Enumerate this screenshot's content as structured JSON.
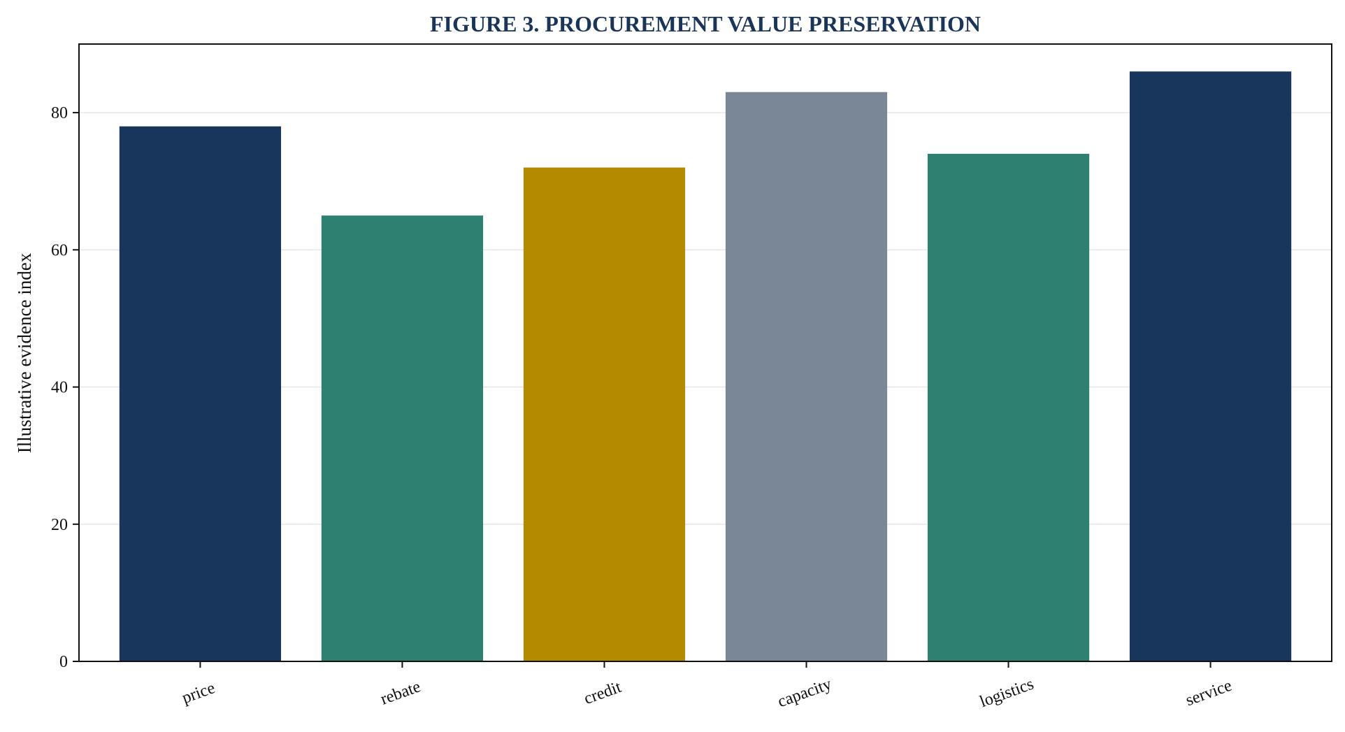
{
  "chart_data": {
    "type": "bar",
    "title": "FIGURE 3. PROCUREMENT VALUE PRESERVATION",
    "xlabel": "",
    "ylabel": "Illustrative evidence index",
    "categories": [
      "price",
      "rebate",
      "credit",
      "capacity",
      "logistics",
      "service"
    ],
    "values": [
      78,
      65,
      72,
      83,
      74,
      86
    ],
    "colors": [
      "#18365c",
      "#2e8070",
      "#b38a00",
      "#7a8796",
      "#2e8070",
      "#18365c"
    ],
    "ylim": [
      0,
      90
    ],
    "yticks": [
      0,
      20,
      40,
      60,
      80
    ],
    "grid": "horizontal",
    "legend": "none"
  },
  "colors": {
    "title": "#1a3558",
    "grid": "#e6e6e6",
    "axis": "#111111"
  }
}
